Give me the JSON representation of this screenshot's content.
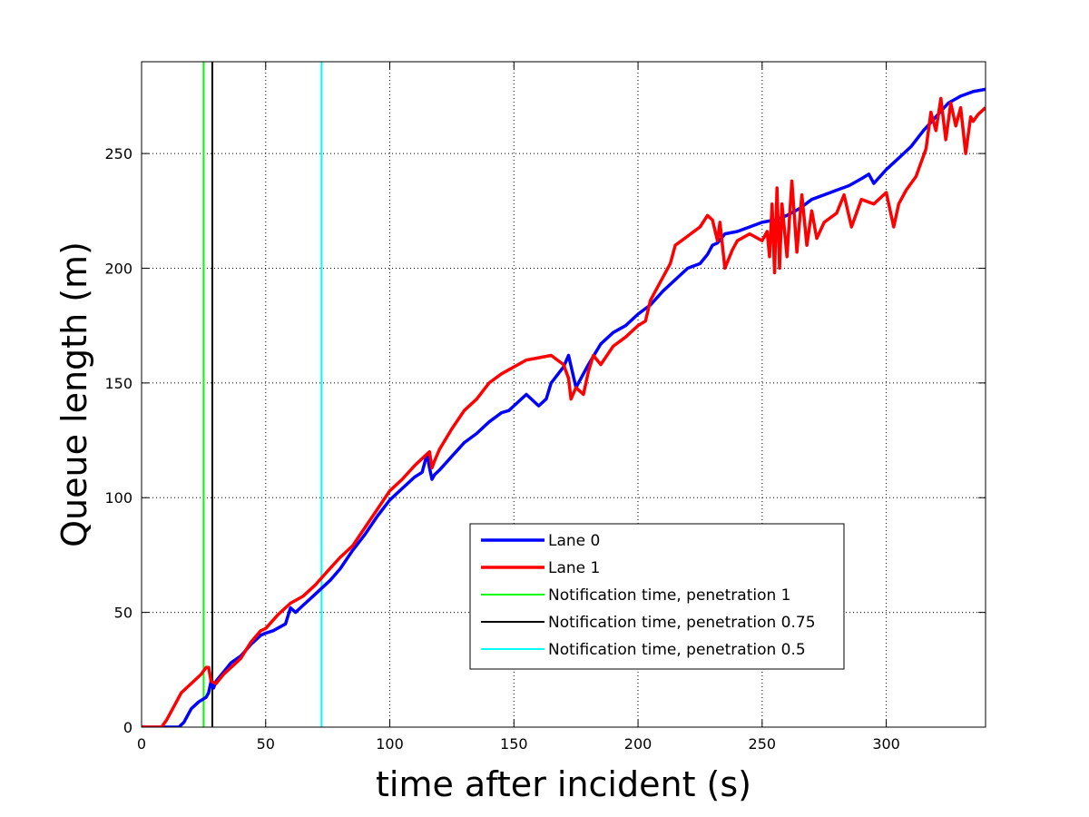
{
  "chart_data": {
    "type": "line",
    "title": "",
    "xlabel": "time after incident (s)",
    "ylabel": "Queue length (m)",
    "xlim": [
      0,
      340
    ],
    "ylim": [
      0,
      290
    ],
    "xticks": [
      0,
      50,
      100,
      150,
      200,
      250,
      300
    ],
    "yticks": [
      0,
      50,
      100,
      150,
      200,
      250
    ],
    "grid": true,
    "grid_style": "dotted",
    "legend_position": "lower-right",
    "series": [
      {
        "name": "Lane 0",
        "color": "#0000ff",
        "kind": "line",
        "x": [
          0,
          10,
          15,
          17,
          20,
          23,
          26,
          27,
          28,
          29,
          30,
          33,
          36,
          40,
          44,
          48,
          50,
          53,
          58,
          60,
          62,
          65,
          70,
          73,
          76,
          80,
          85,
          90,
          95,
          100,
          105,
          110,
          113,
          115,
          116,
          117,
          118,
          120,
          125,
          130,
          135,
          140,
          145,
          148,
          150,
          155,
          160,
          163,
          165,
          170,
          172,
          175,
          180,
          185,
          190,
          195,
          200,
          205,
          210,
          215,
          220,
          225,
          228,
          230,
          232,
          235,
          240,
          245,
          250,
          255,
          260,
          265,
          270,
          275,
          280,
          285,
          290,
          293,
          295,
          300,
          305,
          310,
          315,
          320,
          325,
          330,
          335,
          340
        ],
        "y": [
          0,
          0,
          0,
          2,
          8,
          11,
          13,
          15,
          20,
          17,
          20,
          24,
          28,
          31,
          36,
          40,
          41,
          42,
          45,
          52,
          50,
          53,
          58,
          61,
          64,
          69,
          77,
          84,
          92,
          99,
          104,
          109,
          111,
          119,
          113,
          108,
          110,
          112,
          118,
          124,
          128,
          133,
          137,
          138,
          140,
          145,
          140,
          143,
          150,
          157,
          162,
          148,
          158,
          167,
          172,
          175,
          180,
          184,
          190,
          195,
          200,
          202,
          206,
          210,
          211,
          215,
          216,
          218,
          220,
          221,
          223,
          226,
          230,
          232,
          234,
          236,
          239,
          241,
          237,
          243,
          248,
          253,
          260,
          266,
          272,
          275,
          277,
          278
        ]
      },
      {
        "name": "Lane 1",
        "color": "#ff0000",
        "kind": "line",
        "x": [
          0,
          8,
          10,
          13,
          16,
          20,
          24,
          26,
          27,
          28,
          30,
          33,
          37,
          40,
          44,
          48,
          50,
          55,
          60,
          65,
          70,
          75,
          80,
          85,
          90,
          95,
          100,
          105,
          110,
          114,
          116,
          117,
          118,
          120,
          125,
          130,
          135,
          140,
          145,
          150,
          155,
          160,
          165,
          170,
          172,
          173,
          175,
          178,
          180,
          182,
          185,
          190,
          195,
          200,
          203,
          205,
          208,
          210,
          213,
          215,
          220,
          225,
          228,
          230,
          232,
          233,
          235,
          238,
          240,
          245,
          250,
          252,
          253,
          254,
          255,
          256,
          257,
          258,
          260,
          262,
          264,
          266,
          268,
          270,
          272,
          275,
          280,
          283,
          286,
          290,
          295,
          300,
          303,
          305,
          308,
          312,
          316,
          318,
          320,
          322,
          324,
          326,
          328,
          330,
          332,
          334,
          335,
          337,
          340
        ],
        "y": [
          0,
          0,
          3,
          9,
          15,
          19,
          23,
          26,
          26,
          20,
          19,
          23,
          27,
          30,
          37,
          42,
          43,
          49,
          54,
          57,
          62,
          68,
          74,
          79,
          87,
          95,
          103,
          108,
          114,
          118,
          120,
          113,
          116,
          121,
          130,
          138,
          143,
          150,
          154,
          157,
          160,
          161,
          162,
          158,
          152,
          143,
          148,
          145,
          155,
          162,
          158,
          166,
          170,
          175,
          177,
          186,
          192,
          196,
          202,
          210,
          214,
          218,
          223,
          221,
          212,
          220,
          200,
          208,
          212,
          215,
          212,
          216,
          205,
          228,
          198,
          235,
          200,
          228,
          205,
          238,
          207,
          232,
          210,
          225,
          213,
          220,
          224,
          232,
          218,
          230,
          228,
          233,
          218,
          228,
          234,
          240,
          252,
          268,
          260,
          274,
          256,
          272,
          262,
          270,
          250,
          266,
          264,
          267,
          270
        ]
      },
      {
        "name": "Notification time, penetration 1",
        "color": "#00ff00",
        "kind": "vline",
        "x": 25
      },
      {
        "name": "Notification time, penetration 0.75",
        "color": "#000000",
        "kind": "vline",
        "x": 28.5
      },
      {
        "name": "Notification time, penetration 0.5",
        "color": "#00ffff",
        "kind": "vline",
        "x": 72.5
      }
    ]
  }
}
